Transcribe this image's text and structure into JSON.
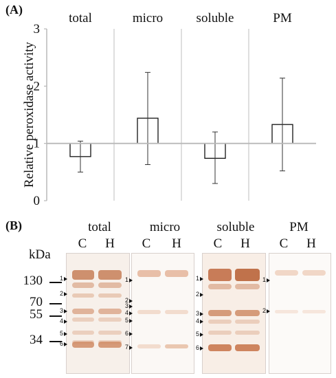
{
  "panel_a_label": "(A)",
  "panel_b_label": "(B)",
  "chart_data": {
    "type": "bar",
    "categories": [
      "total",
      "micro",
      "soluble",
      "PM"
    ],
    "values": [
      0.77,
      1.44,
      0.74,
      1.33
    ],
    "error_low": [
      0.5,
      0.63,
      0.3,
      0.52
    ],
    "error_high": [
      1.04,
      2.24,
      1.2,
      2.14
    ],
    "baseline": 1,
    "ylabel": "Relative peroxidase activity",
    "ylim": [
      0,
      3
    ],
    "yticks": [
      "0",
      "1",
      "2",
      "3"
    ],
    "grid": false
  },
  "gel": {
    "unit_label": "kDa",
    "markers": [
      "130",
      "70",
      "55",
      "34"
    ],
    "panels": [
      {
        "title": "total",
        "lanes": [
          "C",
          "H"
        ],
        "band_numbers": [
          "1",
          "2",
          "3",
          "4",
          "5",
          "6"
        ]
      },
      {
        "title": "micro",
        "lanes": [
          "C",
          "H"
        ],
        "band_numbers": [
          "1",
          "2",
          "3",
          "4",
          "5",
          "6",
          "7"
        ]
      },
      {
        "title": "soluble",
        "lanes": [
          "C",
          "H"
        ],
        "band_numbers": [
          "1",
          "2",
          "3",
          "4",
          "5",
          "6"
        ]
      },
      {
        "title": "PM",
        "lanes": [
          "C",
          "H"
        ],
        "band_numbers": [
          "1",
          "2"
        ]
      }
    ]
  }
}
